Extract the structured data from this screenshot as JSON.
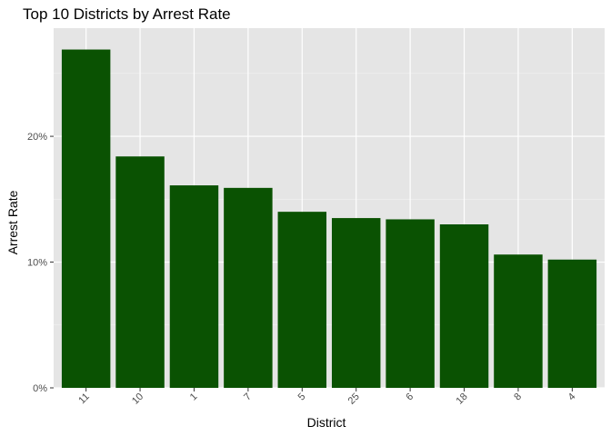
{
  "chart_data": {
    "type": "bar",
    "title": "Top 10 Districts by Arrest Rate",
    "xlabel": "District",
    "ylabel": "Arrest Rate",
    "categories": [
      "11",
      "10",
      "1",
      "7",
      "5",
      "25",
      "6",
      "18",
      "8",
      "4"
    ],
    "values": [
      26.9,
      18.4,
      16.1,
      15.9,
      14.0,
      13.5,
      13.4,
      13.0,
      10.6,
      10.2
    ],
    "value_unit": "%",
    "ylim": [
      0,
      28.6
    ],
    "y_ticks": [
      0,
      10,
      20
    ],
    "y_tick_labels": [
      "0%",
      "10%",
      "20%"
    ],
    "grid": true,
    "legend": "none",
    "colors": {
      "bar": "#0a5202",
      "panel": "#e5e5e5",
      "grid_major": "#ffffff",
      "grid_minor": "#f2f2f2"
    }
  }
}
